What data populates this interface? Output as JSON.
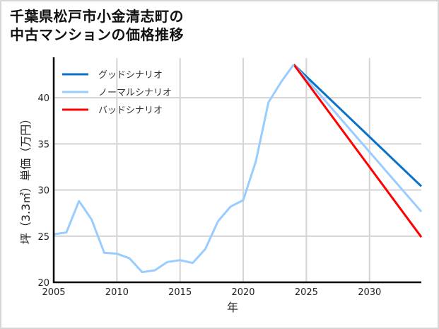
{
  "title": {
    "line1": "千葉県松戸市小金清志町の",
    "line2": "中古マンションの価格推移"
  },
  "chart_data": {
    "type": "line",
    "title": "千葉県松戸市小金清志町の中古マンションの価格推移",
    "xlabel": "年",
    "ylabel": "坪（3.3㎡）単価（万円）",
    "xlim": [
      2005,
      2034.1
    ],
    "ylim": [
      20,
      44.3
    ],
    "xticks": [
      2005,
      2010,
      2015,
      2020,
      2025,
      2030
    ],
    "yticks": [
      20,
      25,
      30,
      35,
      40
    ],
    "grid": true,
    "legend_position": "upper left",
    "historical": {
      "x": [
        2005,
        2006,
        2007,
        2008,
        2009,
        2010,
        2011,
        2012,
        2013,
        2014,
        2015,
        2016,
        2017,
        2018,
        2019,
        2020,
        2021,
        2022,
        2023,
        2024
      ],
      "y": [
        25.2,
        25.4,
        28.8,
        26.8,
        23.2,
        23.1,
        22.6,
        21.1,
        21.3,
        22.2,
        22.4,
        22.1,
        23.6,
        26.6,
        28.2,
        28.9,
        33.1,
        39.5,
        41.7,
        43.6
      ]
    },
    "series": [
      {
        "name": "グッドシナリオ",
        "color": "#0a72c8",
        "x": [
          2024,
          2034.1
        ],
        "y": [
          43.6,
          30.4
        ]
      },
      {
        "name": "ノーマルシナリオ",
        "color": "#99ccff",
        "x": [
          2024,
          2034.1
        ],
        "y": [
          43.6,
          27.65
        ]
      },
      {
        "name": "バッドシナリオ",
        "color": "#ff0000",
        "x": [
          2024,
          2034.1
        ],
        "y": [
          43.6,
          24.9
        ]
      }
    ]
  }
}
